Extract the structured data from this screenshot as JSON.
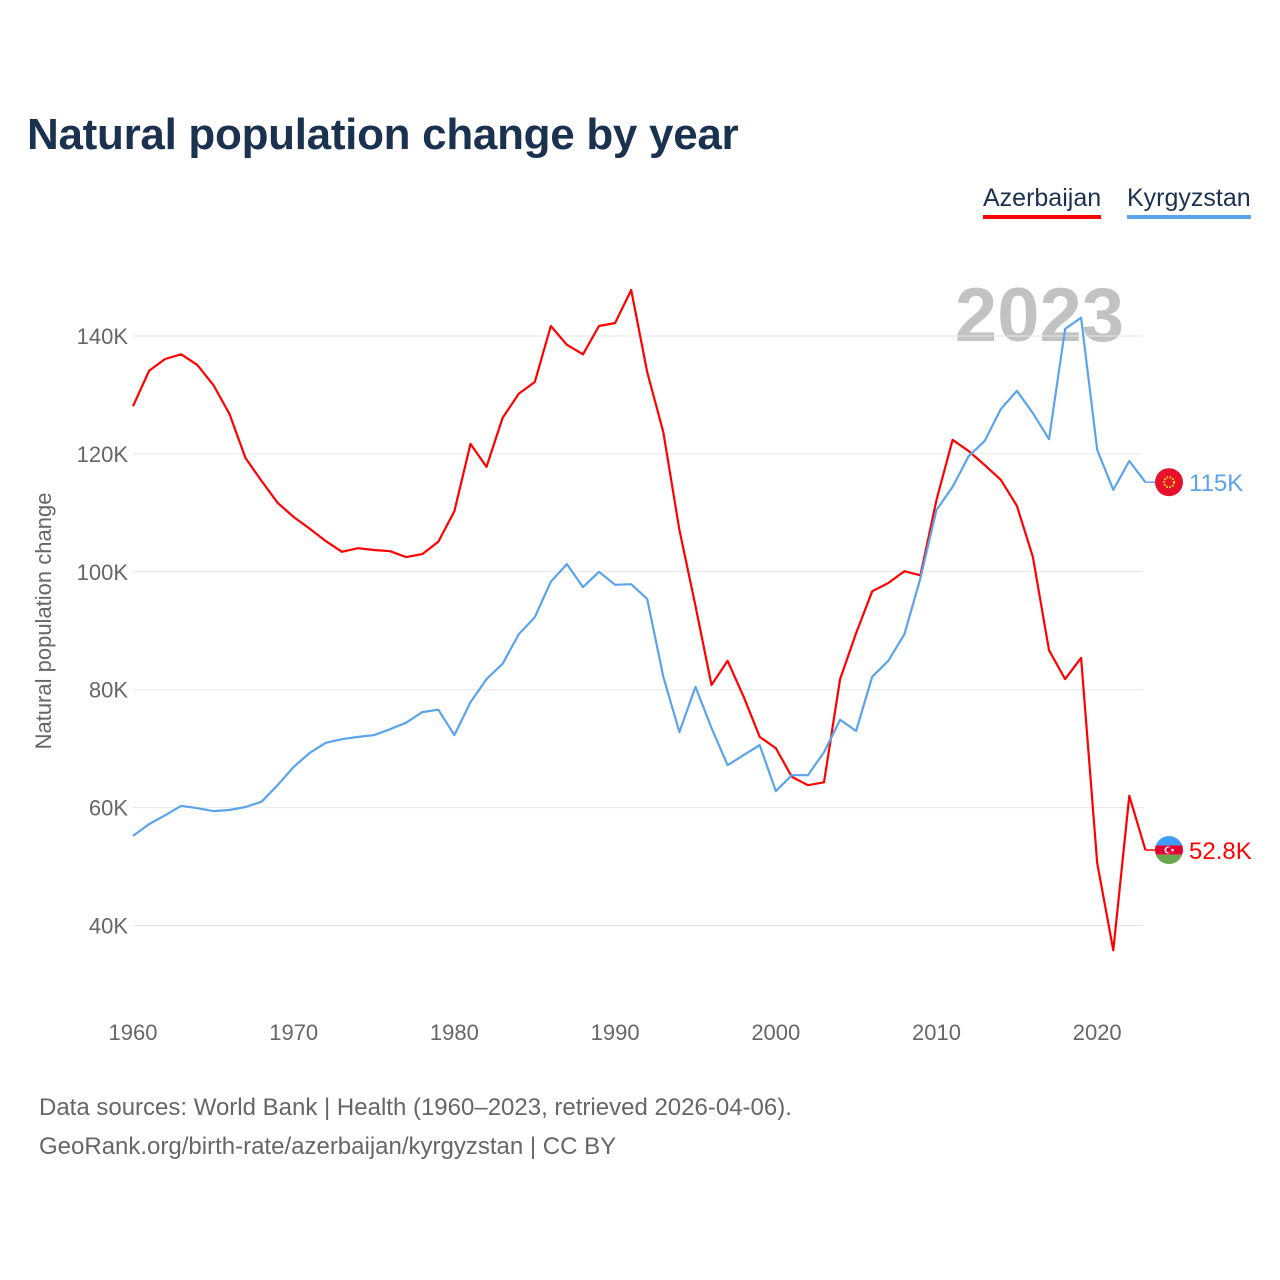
{
  "title": "Natural population change by year",
  "legend": [
    {
      "label": "Azerbaijan",
      "color": "#ff0000"
    },
    {
      "label": "Kyrgyzstan",
      "color": "#5ba4ec"
    }
  ],
  "source": {
    "line1": "Data sources: World Bank | Health (1960–2023, retrieved 2026-04-06).",
    "line2": "GeoRank.org/birth-rate/azerbaijan/kyrgyzstan | CC BY"
  },
  "chart_data": {
    "type": "line",
    "title": "Natural population change by year",
    "xlabel": "",
    "ylabel": "Natural population change",
    "year_watermark": "2023",
    "xlim": [
      1960,
      2023
    ],
    "ylim": [
      28000,
      150000
    ],
    "x_ticks": [
      1960,
      1970,
      1980,
      1990,
      2000,
      2010,
      2020
    ],
    "y_ticks": [
      40000,
      60000,
      80000,
      100000,
      120000,
      140000
    ],
    "y_tick_labels": [
      "40K",
      "60K",
      "80K",
      "100K",
      "120K",
      "140K"
    ],
    "grid": true,
    "legend_position": "top-right",
    "x": [
      1960,
      1961,
      1962,
      1963,
      1964,
      1965,
      1966,
      1967,
      1968,
      1969,
      1970,
      1971,
      1972,
      1973,
      1974,
      1975,
      1976,
      1977,
      1978,
      1979,
      1980,
      1981,
      1982,
      1983,
      1984,
      1985,
      1986,
      1987,
      1988,
      1989,
      1990,
      1991,
      1992,
      1993,
      1994,
      1995,
      1996,
      1997,
      1998,
      1999,
      2000,
      2001,
      2002,
      2003,
      2004,
      2005,
      2006,
      2007,
      2008,
      2009,
      2010,
      2011,
      2012,
      2013,
      2014,
      2015,
      2016,
      2017,
      2018,
      2019,
      2020,
      2021,
      2022,
      2023
    ],
    "series": [
      {
        "name": "Azerbaijan",
        "color": "#ff0000",
        "end_label": "52.8K",
        "flag": "azerbaijan-flag",
        "values": [
          128100,
          134100,
          136100,
          136900,
          135100,
          131700,
          126800,
          119300,
          115400,
          111700,
          109300,
          107300,
          105200,
          103400,
          104000,
          103700,
          103500,
          102500,
          103000,
          105100,
          110300,
          121700,
          117800,
          126100,
          130200,
          132200,
          141700,
          138500,
          136900,
          141700,
          142200,
          147800,
          133900,
          123700,
          107100,
          94200,
          80800,
          84900,
          78800,
          72000,
          70100,
          65200,
          63800,
          64300,
          81800,
          89600,
          96700,
          98100,
          100100,
          99400,
          112200,
          122400,
          120500,
          118100,
          115600,
          111200,
          102500,
          86700,
          81800,
          85400,
          50600,
          35800,
          62000,
          52800
        ]
      },
      {
        "name": "Kyrgyzstan",
        "color": "#5ba4ec",
        "end_label": "115K",
        "flag": "kyrgyzstan-flag",
        "values": [
          55200,
          57200,
          58700,
          60300,
          59900,
          59400,
          59600,
          60100,
          61000,
          63800,
          66900,
          69300,
          71000,
          71600,
          72000,
          72300,
          73300,
          74400,
          76200,
          76600,
          72300,
          77900,
          81800,
          84400,
          89400,
          92300,
          98300,
          101300,
          97400,
          100000,
          97800,
          97900,
          95400,
          82200,
          72800,
          80500,
          73500,
          67200,
          68900,
          70600,
          62800,
          65500,
          65500,
          69400,
          74900,
          73000,
          82200,
          84900,
          89400,
          98900,
          110500,
          114400,
          119600,
          122200,
          127600,
          130700,
          126900,
          122500,
          141200,
          143100,
          120700,
          113900,
          118800,
          115200
        ]
      }
    ]
  }
}
